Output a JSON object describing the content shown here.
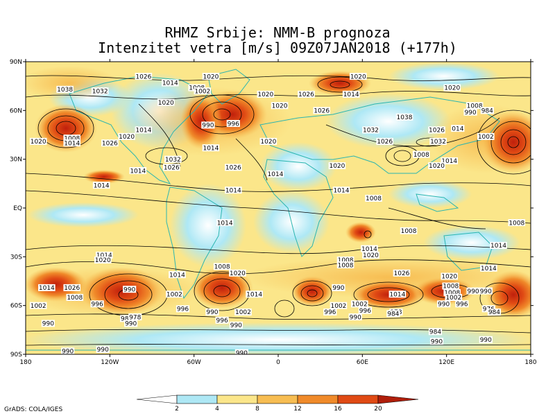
{
  "title_line1": "RHMZ Srbije: NMM-B prognoza",
  "title_line2": "Intenzitet vetra [m/s] 09Z07JAN2018 (+177h)",
  "lat_labels": [
    "90N",
    "60N",
    "30N",
    "EQ",
    "30S",
    "60S",
    "90S"
  ],
  "lon_labels": [
    "180",
    "120W",
    "60W",
    "0",
    "60E",
    "120E",
    "180"
  ],
  "colorbar": {
    "ticks": [
      "2",
      "4",
      "8",
      "12",
      "16",
      "20"
    ],
    "colors": [
      "#ffffff",
      "#aee8f5",
      "#fbe68a",
      "#f7bd52",
      "#f08a2a",
      "#e04a14",
      "#b01e0a"
    ]
  },
  "pressure_labels": [
    {
      "text": "1038",
      "lon": -152,
      "lat": 73
    },
    {
      "text": "1032",
      "lon": -127,
      "lat": 72
    },
    {
      "text": "1026",
      "lon": -96,
      "lat": 81
    },
    {
      "text": "1014",
      "lon": -77,
      "lat": 77
    },
    {
      "text": "1020",
      "lon": -48,
      "lat": 81
    },
    {
      "text": "1008",
      "lon": -58,
      "lat": 74
    },
    {
      "text": "1002",
      "lon": -54,
      "lat": 72
    },
    {
      "text": "1020",
      "lon": -80,
      "lat": 65
    },
    {
      "text": "1014",
      "lon": -96,
      "lat": 48
    },
    {
      "text": "990",
      "lon": -50,
      "lat": 51
    },
    {
      "text": "996",
      "lon": -32,
      "lat": 52
    },
    {
      "text": "1014",
      "lon": -48,
      "lat": 37
    },
    {
      "text": "1020",
      "lon": -108,
      "lat": 44
    },
    {
      "text": "1026",
      "lon": -120,
      "lat": 40
    },
    {
      "text": "1008",
      "lon": -147,
      "lat": 43
    },
    {
      "text": "1014",
      "lon": -147,
      "lat": 40
    },
    {
      "text": "1020",
      "lon": -171,
      "lat": 41
    },
    {
      "text": "1032",
      "lon": -75,
      "lat": 30
    },
    {
      "text": "1026",
      "lon": -76,
      "lat": 25
    },
    {
      "text": "1014",
      "lon": -100,
      "lat": 23
    },
    {
      "text": "1026",
      "lon": -32,
      "lat": 25
    },
    {
      "text": "1014",
      "lon": -126,
      "lat": 14
    },
    {
      "text": "1014",
      "lon": -32,
      "lat": 11
    },
    {
      "text": "1020",
      "lon": -9,
      "lat": 70
    },
    {
      "text": "1020",
      "lon": 1,
      "lat": 63
    },
    {
      "text": "1020",
      "lon": -7,
      "lat": 41
    },
    {
      "text": "1026",
      "lon": 20,
      "lat": 70
    },
    {
      "text": "1026",
      "lon": 31,
      "lat": 60
    },
    {
      "text": "1020",
      "lon": 57,
      "lat": 81
    },
    {
      "text": "1014",
      "lon": 52,
      "lat": 70
    },
    {
      "text": "1038",
      "lon": 90,
      "lat": 56
    },
    {
      "text": "1032",
      "lon": 66,
      "lat": 48
    },
    {
      "text": "1026",
      "lon": 76,
      "lat": 41
    },
    {
      "text": "1026",
      "lon": 113,
      "lat": 48
    },
    {
      "text": "1032",
      "lon": 114,
      "lat": 41
    },
    {
      "text": "1008",
      "lon": 102,
      "lat": 33
    },
    {
      "text": "1014",
      "lon": 122,
      "lat": 29
    },
    {
      "text": "1020",
      "lon": 113,
      "lat": 26
    },
    {
      "text": "014",
      "lon": 128,
      "lat": 49
    },
    {
      "text": "1020",
      "lon": 124,
      "lat": 74
    },
    {
      "text": "1008",
      "lon": 140,
      "lat": 63
    },
    {
      "text": "990",
      "lon": 137,
      "lat": 59
    },
    {
      "text": "984",
      "lon": 149,
      "lat": 60
    },
    {
      "text": "1002",
      "lon": 148,
      "lat": 44
    },
    {
      "text": "1014",
      "lon": -2,
      "lat": 21
    },
    {
      "text": "1020",
      "lon": 42,
      "lat": 26
    },
    {
      "text": "1014",
      "lon": 45,
      "lat": 11
    },
    {
      "text": "1008",
      "lon": 68,
      "lat": 6
    },
    {
      "text": "1008",
      "lon": 170,
      "lat": -9
    },
    {
      "text": "1008",
      "lon": 93,
      "lat": -14
    },
    {
      "text": "1014",
      "lon": -38,
      "lat": -9
    },
    {
      "text": "1014",
      "lon": 65,
      "lat": -25
    },
    {
      "text": "1020",
      "lon": 66,
      "lat": -29
    },
    {
      "text": "1014",
      "lon": 157,
      "lat": -23
    },
    {
      "text": "1014",
      "lon": 150,
      "lat": -37
    },
    {
      "text": "1026",
      "lon": 88,
      "lat": -40
    },
    {
      "text": "1020",
      "lon": 122,
      "lat": -42
    },
    {
      "text": "1008",
      "lon": 48,
      "lat": -32
    },
    {
      "text": "1008",
      "lon": 48,
      "lat": -35
    },
    {
      "text": "1008",
      "lon": -40,
      "lat": -36
    },
    {
      "text": "1020",
      "lon": -29,
      "lat": -40
    },
    {
      "text": "1014",
      "lon": -72,
      "lat": -41
    },
    {
      "text": "1014",
      "lon": -17,
      "lat": -53
    },
    {
      "text": "990",
      "lon": 43,
      "lat": -49
    },
    {
      "text": "1014",
      "lon": 85,
      "lat": -53
    },
    {
      "text": "1008",
      "lon": 123,
      "lat": -48
    },
    {
      "text": "1008",
      "lon": 124,
      "lat": -52
    },
    {
      "text": "1002",
      "lon": 125,
      "lat": -55
    },
    {
      "text": "990",
      "lon": 139,
      "lat": -51
    },
    {
      "text": "990",
      "lon": 148,
      "lat": -51
    },
    {
      "text": "976",
      "lon": 150,
      "lat": -62
    },
    {
      "text": "984",
      "lon": 154,
      "lat": -64
    },
    {
      "text": "990",
      "lon": 118,
      "lat": -59
    },
    {
      "text": "996",
      "lon": 131,
      "lat": -59
    },
    {
      "text": "1002",
      "lon": 58,
      "lat": -59
    },
    {
      "text": "996",
      "lon": 62,
      "lat": -63
    },
    {
      "text": "978",
      "lon": 84,
      "lat": -64
    },
    {
      "text": "984",
      "lon": 82,
      "lat": -65
    },
    {
      "text": "1002",
      "lon": 43,
      "lat": -60
    },
    {
      "text": "996",
      "lon": 37,
      "lat": -64
    },
    {
      "text": "990",
      "lon": 55,
      "lat": -67
    },
    {
      "text": "1014",
      "lon": -124,
      "lat": -29
    },
    {
      "text": "1020",
      "lon": -125,
      "lat": -32
    },
    {
      "text": "1014",
      "lon": -165,
      "lat": -49
    },
    {
      "text": "1026",
      "lon": -147,
      "lat": -49
    },
    {
      "text": "1008",
      "lon": -145,
      "lat": -55
    },
    {
      "text": "1002",
      "lon": -171,
      "lat": -60
    },
    {
      "text": "990",
      "lon": -106,
      "lat": -50
    },
    {
      "text": "996",
      "lon": -129,
      "lat": -59
    },
    {
      "text": "1002",
      "lon": -74,
      "lat": -53
    },
    {
      "text": "996",
      "lon": -68,
      "lat": -62
    },
    {
      "text": "990",
      "lon": -47,
      "lat": -64
    },
    {
      "text": "1002",
      "lon": -25,
      "lat": -64
    },
    {
      "text": "990",
      "lon": -30,
      "lat": -72
    },
    {
      "text": "996",
      "lon": -40,
      "lat": -69
    },
    {
      "text": "984",
      "lon": -108,
      "lat": -68
    },
    {
      "text": "978",
      "lon": -102,
      "lat": -67
    },
    {
      "text": "990",
      "lon": -105,
      "lat": -71
    },
    {
      "text": "990",
      "lon": -164,
      "lat": -71
    },
    {
      "text": "984",
      "lon": 112,
      "lat": -76
    },
    {
      "text": "990",
      "lon": 113,
      "lat": -82
    },
    {
      "text": "990",
      "lon": 148,
      "lat": -81
    },
    {
      "text": "990",
      "lon": -150,
      "lat": -88
    },
    {
      "text": "990",
      "lon": -125,
      "lat": -87
    },
    {
      "text": "990",
      "lon": -26,
      "lat": -89
    }
  ],
  "credit": "GrADS: COLA/IGES"
}
